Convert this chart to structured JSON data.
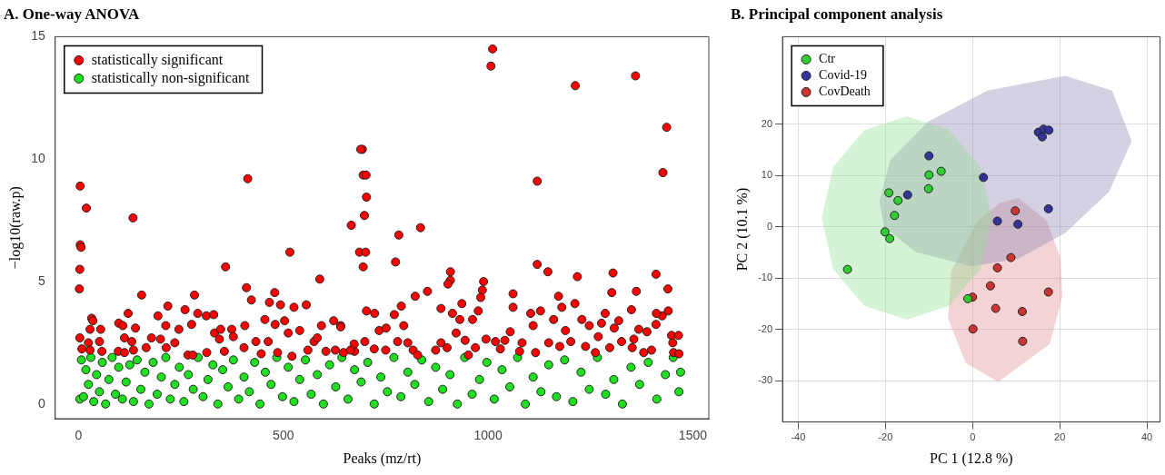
{
  "chart_data": [
    {
      "type": "scatter",
      "title": "A. One-way ANOVA",
      "xlabel": "Peaks (mz/rt)",
      "ylabel": "−log10(raw.p)",
      "xlim": [
        -57,
        1539
      ],
      "ylim": [
        -0.6,
        15
      ],
      "xticks": [
        0,
        500,
        1000,
        1500
      ],
      "yticks": [
        0,
        5,
        10,
        15
      ],
      "grid": false,
      "legend": "top left",
      "marker": "circle",
      "series": [
        {
          "name": "statistically significant",
          "color": "#ff0000",
          "x": [
            4,
            19,
            4,
            6,
            3,
            2,
            3,
            8,
            133,
            413,
            359,
            516,
            589,
            410,
            154,
            283,
            479,
            32,
            35,
            121,
            194,
            218,
            260,
            291,
            312,
            330,
            422,
            466,
            493,
            526,
            556,
            54,
            28,
            98,
            108,
            139,
            213,
            245,
            276,
            332,
            347,
            374,
            406,
            455,
            480,
            503,
            540,
            593,
            623,
            640,
            51,
            24,
            112,
            130,
            178,
            200,
            235,
            344,
            378,
            433,
            463,
            512,
            575,
            583,
            28,
            57,
            97,
            112,
            134,
            165,
            214,
            267,
            279,
            313,
            356,
            404,
            446,
            486,
            521,
            560,
            604,
            627,
            647,
            674,
            693,
            689,
            695,
            702,
            703,
            698,
            666,
            686,
            701,
            695,
            782,
            835,
            774,
            1011,
            1007,
            1213,
            1360,
            1436,
            1427,
            1120,
            1120,
            1146,
            1218,
            1305,
            1302,
            1362,
            1410,
            1439,
            1440,
            908,
            908,
            902,
            989,
            986,
            982,
            822,
            852,
            788,
            1061,
            1061,
            1172,
            1180,
            1212,
            703,
            723,
            771,
            885,
            936,
            913,
            976,
            931,
            962,
            1104,
            1128,
            1160,
            1229,
            1286,
            1350,
            1410,
            1425,
            1411,
            640,
            734,
            751,
            794,
            922,
            1054,
            1110,
            1189,
            1247,
            1277,
            1308,
            1319,
            1368,
            1388,
            1448,
            1465,
            673,
            699,
            779,
            804,
            885,
            944,
            995,
            1018,
            1041,
            1083,
            1148,
            1202,
            1269,
            1326,
            1356,
            1451,
            664,
            722,
            750,
            817,
            872,
            900,
            969,
            1030,
            1077,
            1116,
            1175,
            1238,
            1297,
            1352,
            1399,
            1453,
            1466,
            828,
            952,
            1262,
            1380
          ],
          "values": [
            8.9,
            8.0,
            6.5,
            6.4,
            5.5,
            4.7,
            2.7,
            2.25,
            7.6,
            9.2,
            5.6,
            6.2,
            5.1,
            4.75,
            4.45,
            4.45,
            4.55,
            3.5,
            3.4,
            3.7,
            3.6,
            4.0,
            3.85,
            3.7,
            3.6,
            3.65,
            4.25,
            4.15,
            4.05,
            3.95,
            4.05,
            3.05,
            3.05,
            3.3,
            3.2,
            3.1,
            3.2,
            3.05,
            3.25,
            2.9,
            3.05,
            3.05,
            3.2,
            3.45,
            3.25,
            3.4,
            3.0,
            3.2,
            3.4,
            3.2,
            2.55,
            2.5,
            2.7,
            2.55,
            2.7,
            2.65,
            2.5,
            2.65,
            2.75,
            2.55,
            2.55,
            2.9,
            2.55,
            2.7,
            2.2,
            2.15,
            2.15,
            2.1,
            2.2,
            2.3,
            2.3,
            2.0,
            2.0,
            2.1,
            2.15,
            2.3,
            2.05,
            2.1,
            1.95,
            2.2,
            2.15,
            2.2,
            2.1,
            2.15,
            10.4,
            10.4,
            9.35,
            9.35,
            8.45,
            7.7,
            7.3,
            6.2,
            6.2,
            5.6,
            6.9,
            7.2,
            5.8,
            14.5,
            13.8,
            13.0,
            13.4,
            11.3,
            9.45,
            9.1,
            5.7,
            5.4,
            5.2,
            5.35,
            4.55,
            4.6,
            5.3,
            4.7,
            3.8,
            5.4,
            5.05,
            4.9,
            5.0,
            4.65,
            4.35,
            4.4,
            4.6,
            4.0,
            4.5,
            3.95,
            4.4,
            3.95,
            4.1,
            3.8,
            3.7,
            3.65,
            3.9,
            4.1,
            3.7,
            3.8,
            3.45,
            3.45,
            3.7,
            3.8,
            3.45,
            3.45,
            3.7,
            3.85,
            3.25,
            3.6,
            3.7,
            3.15,
            3.0,
            3.1,
            3.2,
            2.9,
            2.95,
            3.2,
            3.0,
            3.2,
            3.3,
            3.1,
            3.4,
            3.05,
            2.95,
            2.8,
            2.8,
            2.45,
            2.55,
            2.55,
            2.5,
            2.5,
            2.6,
            2.65,
            2.55,
            2.6,
            2.5,
            2.5,
            2.55,
            2.75,
            2.55,
            2.65,
            2.5,
            2.2,
            2.25,
            2.2,
            2.2,
            2.2,
            2.3,
            2.3,
            2.25,
            2.15,
            2.1,
            2.35,
            2.35,
            2.3,
            2.3,
            2.2,
            2.1,
            2.05,
            2.0,
            2.0,
            2.1,
            2.1
          ]
        },
        {
          "name": "statistically non-significant",
          "color": "#1ee01e",
          "x": [
            3,
            7,
            12,
            18,
            24,
            30,
            37,
            44,
            51,
            58,
            66,
            74,
            82,
            90,
            98,
            107,
            116,
            125,
            134,
            143,
            152,
            162,
            172,
            182,
            192,
            202,
            213,
            224,
            235,
            246,
            257,
            268,
            280,
            292,
            304,
            316,
            328,
            340,
            352,
            365,
            378,
            391,
            404,
            417,
            430,
            443,
            456,
            470,
            484,
            498,
            512,
            526,
            540,
            554,
            568,
            583,
            598,
            613,
            628,
            643,
            658,
            674,
            690,
            706,
            722,
            738,
            754,
            770,
            787,
            804,
            821,
            838,
            855,
            872,
            889,
            907,
            925,
            943,
            961,
            979,
            997,
            1015,
            1034,
            1053,
            1072,
            1091,
            1110,
            1129,
            1148,
            1167,
            1187,
            1207,
            1227,
            1247,
            1267,
            1287,
            1307,
            1328,
            1349,
            1370,
            1391,
            1412,
            1433,
            1452,
            1466,
            1470
          ],
          "values": [
            0.2,
            1.8,
            0.3,
            1.4,
            0.8,
            1.9,
            0.1,
            1.2,
            0.5,
            1.7,
            0.0,
            1.0,
            1.9,
            0.4,
            1.5,
            0.2,
            0.9,
            1.6,
            0.1,
            1.8,
            0.6,
            1.3,
            0.0,
            1.7,
            0.4,
            1.1,
            1.9,
            0.2,
            0.8,
            1.5,
            0.1,
            1.2,
            0.6,
            1.9,
            0.3,
            1.0,
            1.6,
            0.0,
            1.4,
            0.7,
            1.8,
            0.2,
            1.1,
            0.5,
            1.7,
            0.0,
            1.3,
            0.8,
            1.9,
            0.3,
            1.5,
            0.1,
            1.0,
            1.8,
            0.4,
            1.2,
            0.0,
            1.6,
            0.7,
            1.9,
            0.2,
            1.4,
            0.9,
            1.7,
            0.0,
            1.1,
            0.5,
            1.9,
            0.3,
            1.3,
            0.8,
            1.8,
            0.1,
            1.5,
            0.6,
            1.2,
            0.0,
            1.9,
            0.4,
            1.0,
            1.7,
            0.2,
            1.4,
            0.7,
            1.9,
            0.0,
            1.1,
            0.5,
            1.6,
            0.3,
            1.8,
            0.1,
            1.3,
            0.6,
            1.9,
            0.4,
            1.0,
            0.0,
            1.5,
            0.8,
            1.7,
            0.2,
            1.2,
            1.9,
            0.5,
            1.3
          ]
        }
      ]
    },
    {
      "type": "scatter",
      "title": "B. Principal component analysis",
      "xlabel": "PC 1 (12.8 %)",
      "ylabel": "PC 2 (10.1 %)",
      "xlim": [
        -43.6,
        43
      ],
      "ylim": [
        -38,
        37
      ],
      "xticks": [
        -40,
        -20,
        0,
        20,
        40
      ],
      "yticks": [
        -30,
        -20,
        -10,
        0,
        10,
        20
      ],
      "grid": true,
      "legend": "top left",
      "series": [
        {
          "type": "area",
          "color": "#90e090",
          "x": [
            4.4,
            1.8,
            -5.35,
            -15.1,
            -24.85,
            -32,
            -34.6,
            -32,
            -24.85,
            -15.1,
            -5.35,
            1.8,
            4.4
          ],
          "values": [
            1.7,
            11.6,
            18.8,
            21.5,
            18.8,
            11.6,
            1.7,
            -8.2,
            -15.4,
            -18.1,
            -15.4,
            -8.2,
            1.7
          ]
        },
        {
          "type": "area",
          "color": "#8c86b4",
          "x": [
            -21.4,
            -18.9,
            -10.3,
            3.4,
            21.3,
            32,
            36.5,
            31.3,
            21.3,
            10.5,
            -0.2,
            -13.1,
            -20.3,
            -21.4
          ],
          "values": [
            4.9,
            13,
            20.4,
            26.5,
            29.4,
            26.5,
            16.7,
            6.8,
            -1.2,
            -6.2,
            -7.7,
            -4.9,
            0,
            4.9
          ]
        },
        {
          "type": "area",
          "color": "#e08c8c",
          "x": [
            10.5,
            17,
            20.2,
            20.6,
            17.7,
            5.9,
            -1.6,
            -5.6,
            -4.9,
            1.2,
            6.2,
            10.5
          ],
          "values": [
            5.6,
            1.2,
            -6.2,
            -13.6,
            -22.8,
            -30.2,
            -26.5,
            -17.9,
            -8.6,
            1.2,
            4.6,
            5.6
          ]
        },
        {
          "name": "Ctr",
          "color": "#33cc33",
          "marker": "circle",
          "x": [
            -28.7,
            -20.1,
            -19,
            -17.9,
            -19.2,
            -17.1,
            -10.1,
            -10,
            -7.2,
            -1.1
          ],
          "values": [
            -8.3,
            -1.0,
            -2.3,
            2.2,
            6.6,
            5.1,
            7.4,
            10.1,
            10.8,
            -14
          ]
        },
        {
          "name": "Covid-19",
          "color": "#333399",
          "marker": "circle",
          "x": [
            -10,
            -14.9,
            2.5,
            15.1,
            16.3,
            17.5,
            16,
            17.4,
            5.7,
            10.4
          ],
          "values": [
            13.8,
            6.2,
            9.6,
            18.4,
            19,
            18.8,
            17.5,
            3.5,
            1.1,
            0.5
          ]
        },
        {
          "name": "CovDeath",
          "color": "#cc3333",
          "marker": "circle",
          "x": [
            9.8,
            8.8,
            5.7,
            4.1,
            0,
            5.3,
            11.4,
            17.4,
            0.1,
            11.5
          ],
          "values": [
            3.1,
            -6,
            -8,
            -11.5,
            -13.7,
            -15.9,
            -16.5,
            -12.7,
            -19.9,
            -22.3
          ]
        }
      ]
    }
  ]
}
